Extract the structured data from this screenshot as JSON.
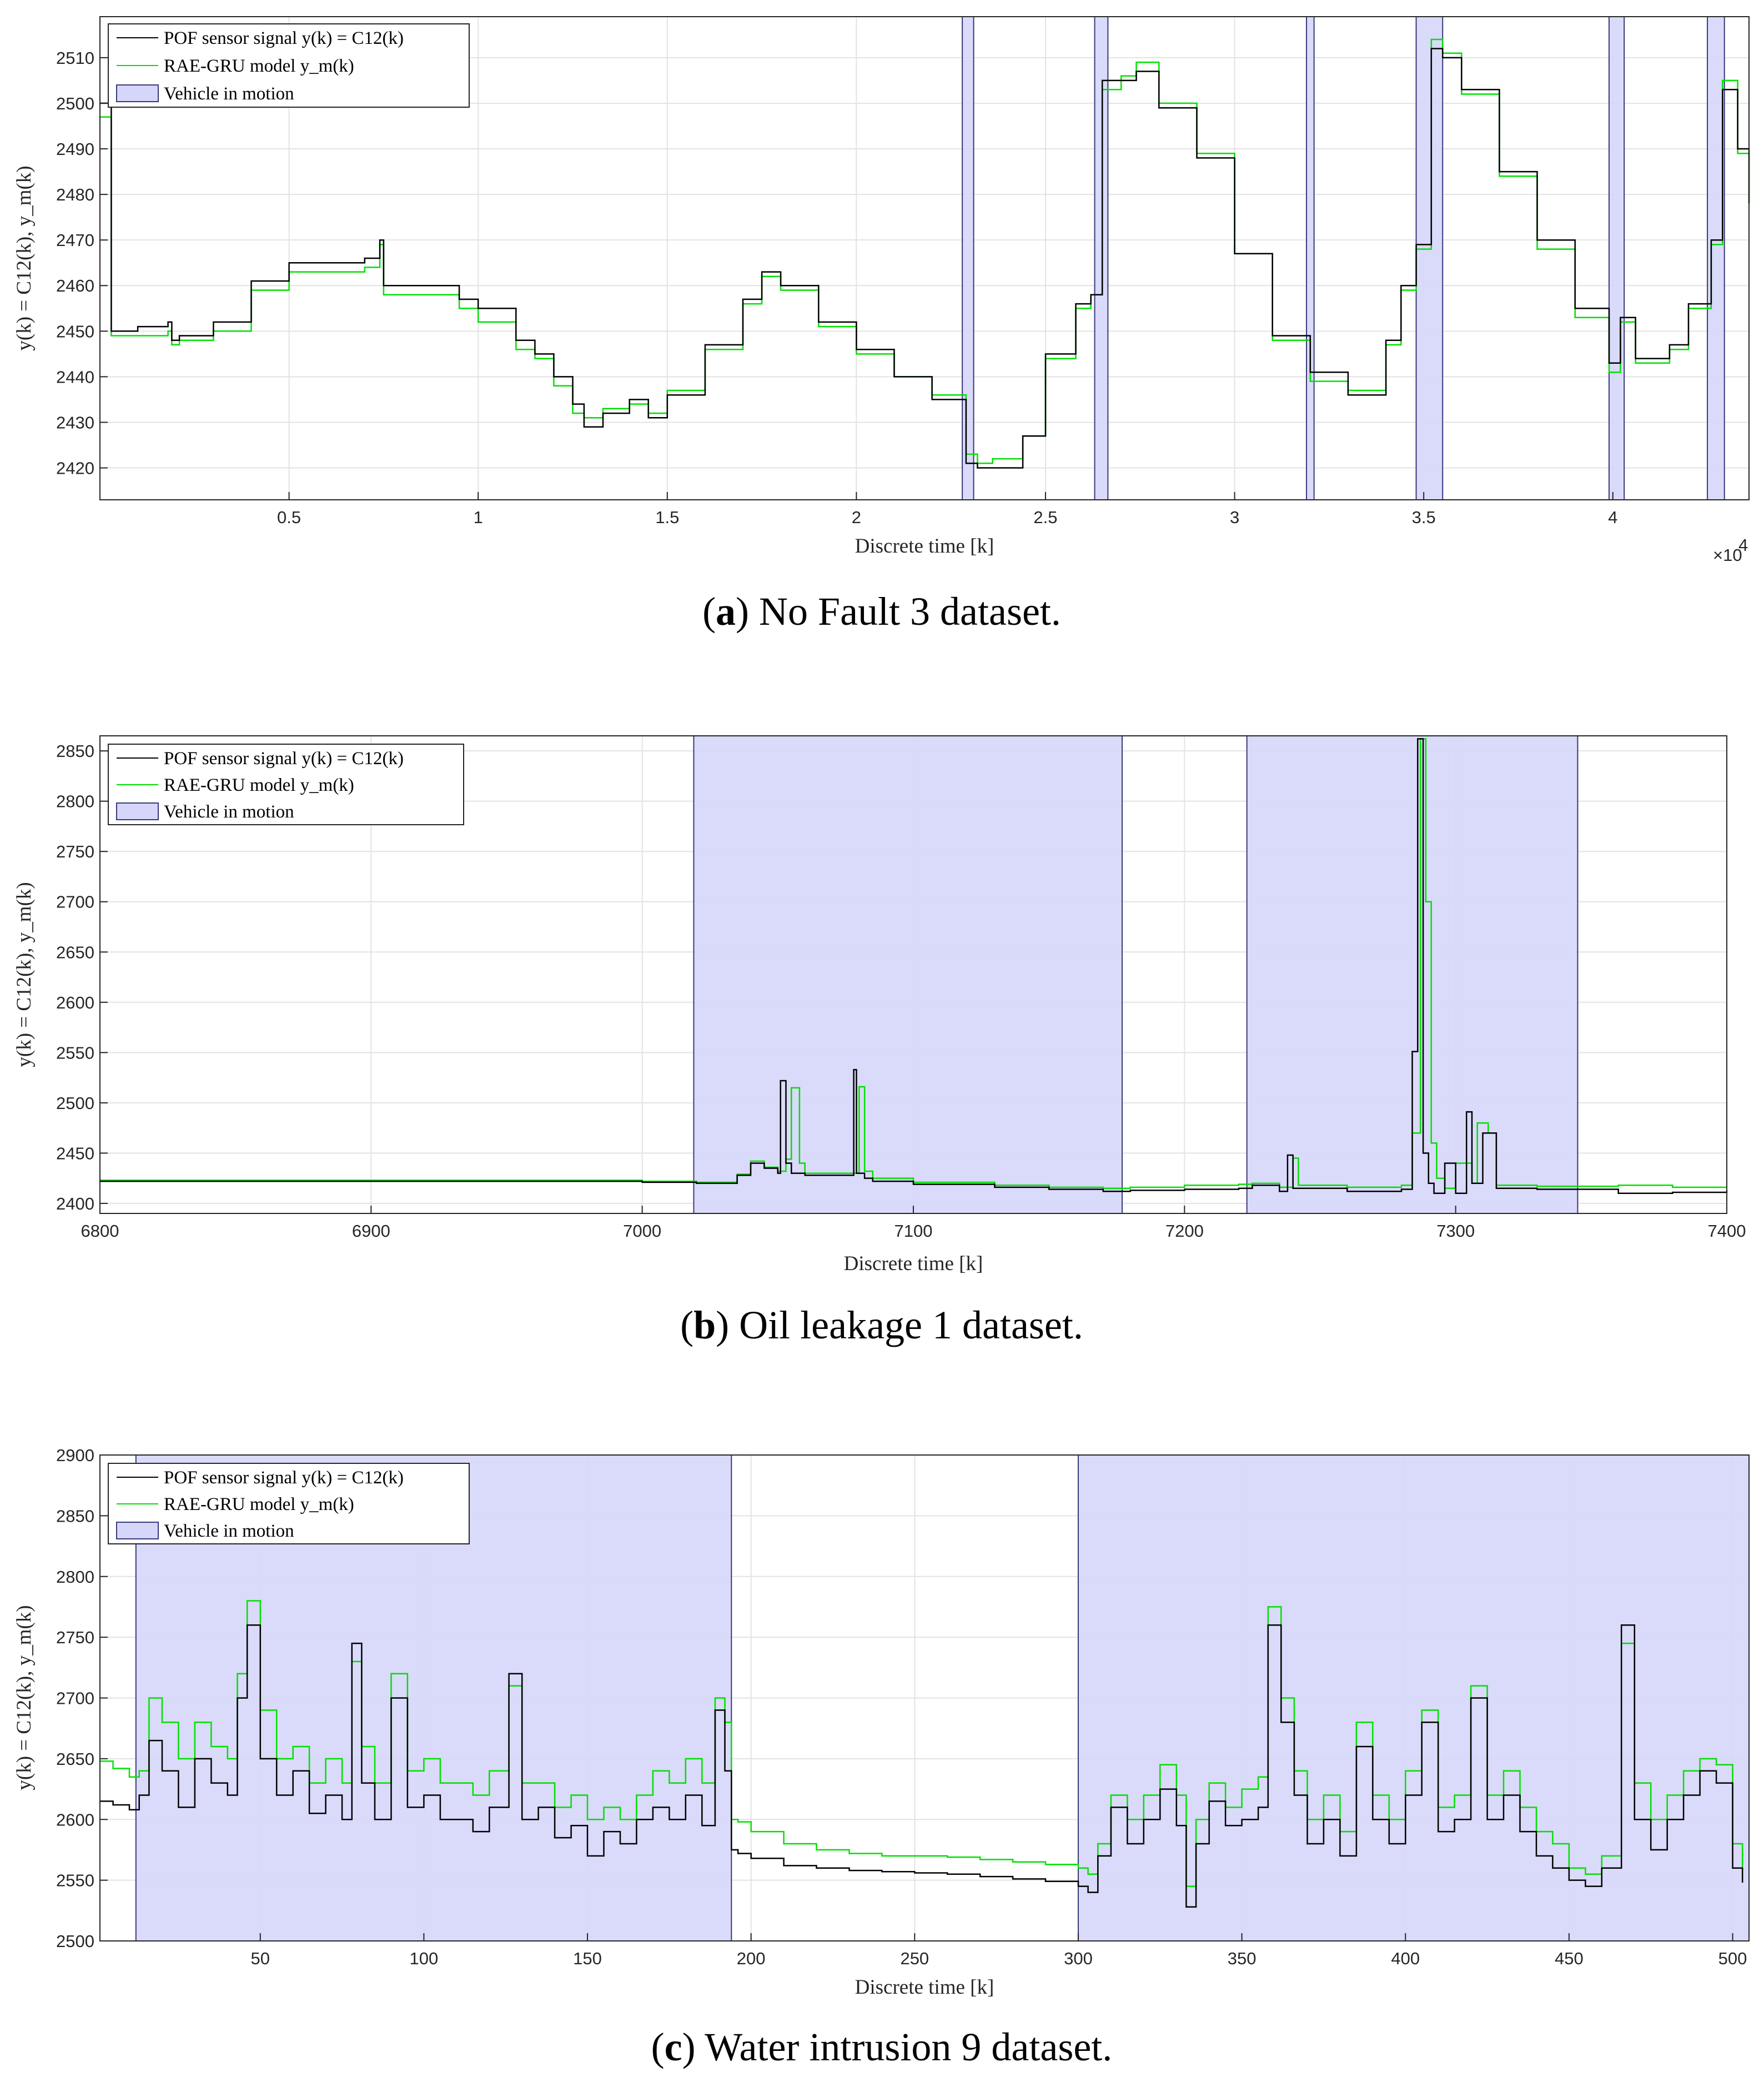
{
  "figures": [
    {
      "caption_letter": "a",
      "caption_text": " No Fault 3 dataset.",
      "xlabel": "Discrete time [k]",
      "ylabel": "y(k) = C12(k),  y_m(k)",
      "x_exponent_label": "×10",
      "x_exponent_power": "4"
    },
    {
      "caption_letter": "b",
      "caption_text": " Oil leakage 1 dataset.",
      "xlabel": "Discrete time [k]",
      "ylabel": "y(k) = C12(k),  y_m(k)"
    },
    {
      "caption_letter": "c",
      "caption_text": " Water intrusion 9 dataset.",
      "xlabel": "Discrete time [k]",
      "ylabel": "y(k) = C12(k),  y_m(k)"
    }
  ],
  "legend": {
    "sensor": "POF sensor signal y(k) = C12(k)",
    "model": "RAE-GRU model y_m(k)",
    "motion": "Vehicle in motion"
  },
  "colors": {
    "sensor": "#000000",
    "model": "#00e000",
    "motion_fill": "#d6d6fa",
    "motion_edge": "#3a3a7a",
    "grid": "#e3e3e3",
    "axis": "#262626"
  },
  "chart_data": [
    {
      "type": "line",
      "xlim": [
        0,
        43600
      ],
      "ylim": [
        2413,
        2519
      ],
      "xticks": [
        5000,
        10000,
        15000,
        20000,
        25000,
        30000,
        35000,
        40000
      ],
      "xticklabels": [
        "0.5",
        "1",
        "1.5",
        "2",
        "2.5",
        "3",
        "3.5",
        "4"
      ],
      "yticks": [
        2420,
        2430,
        2440,
        2450,
        2460,
        2470,
        2480,
        2490,
        2500,
        2510
      ],
      "grid": true,
      "legend_position": "top-left",
      "motion_intervals": [
        [
          22800,
          23100
        ],
        [
          26300,
          26650
        ],
        [
          31900,
          32100
        ],
        [
          34800,
          35500
        ],
        [
          39900,
          40300
        ],
        [
          42500,
          42950
        ]
      ],
      "series": [
        {
          "name": "POF sensor signal y(k) = C12(k)",
          "x": [
            0,
            300,
            1000,
            1800,
            1900,
            2100,
            3000,
            4000,
            5000,
            6000,
            7000,
            7400,
            7500,
            8000,
            9000,
            9500,
            10000,
            11000,
            11500,
            12000,
            12500,
            12800,
            13300,
            14000,
            14500,
            15000,
            16000,
            17000,
            17500,
            18000,
            19000,
            20000,
            21000,
            22000,
            22900,
            23200,
            23600,
            24400,
            25000,
            25800,
            26200,
            26500,
            27000,
            27400,
            28000,
            29000,
            30000,
            31000,
            32000,
            33000,
            34000,
            34400,
            34800,
            35200,
            35500,
            36000,
            37000,
            38000,
            39000,
            39900,
            40200,
            40600,
            41500,
            42000,
            42600,
            42900,
            43300,
            43600
          ],
          "y": [
            2500,
            2450,
            2451,
            2452,
            2448,
            2449,
            2452,
            2461,
            2465,
            2465,
            2466,
            2470,
            2460,
            2460,
            2460,
            2457,
            2455,
            2448,
            2445,
            2440,
            2434,
            2429,
            2432,
            2435,
            2431,
            2436,
            2447,
            2457,
            2463,
            2460,
            2452,
            2446,
            2440,
            2435,
            2421,
            2420,
            2420,
            2427,
            2445,
            2456,
            2458,
            2505,
            2505,
            2507,
            2499,
            2488,
            2467,
            2449,
            2441,
            2436,
            2448,
            2460,
            2469,
            2512,
            2510,
            2503,
            2485,
            2470,
            2455,
            2443,
            2453,
            2444,
            2447,
            2456,
            2470,
            2503,
            2490,
            2478
          ]
        },
        {
          "name": "RAE-GRU model y_m(k)",
          "x": [
            0,
            300,
            1000,
            1800,
            1900,
            2100,
            3000,
            4000,
            5000,
            6000,
            7000,
            7400,
            7500,
            8000,
            9000,
            9500,
            10000,
            11000,
            11500,
            12000,
            12500,
            12800,
            13300,
            14000,
            14500,
            15000,
            16000,
            17000,
            17500,
            18000,
            19000,
            20000,
            21000,
            22000,
            22900,
            23200,
            23600,
            24400,
            25000,
            25800,
            26200,
            26500,
            27000,
            27400,
            28000,
            29000,
            30000,
            31000,
            32000,
            33000,
            34000,
            34400,
            34800,
            35200,
            35500,
            36000,
            37000,
            38000,
            39000,
            39900,
            40200,
            40600,
            41500,
            42000,
            42600,
            42900,
            43300,
            43600
          ],
          "y": [
            2497,
            2449,
            2449,
            2450,
            2447,
            2448,
            2450,
            2459,
            2463,
            2463,
            2464,
            2469,
            2458,
            2458,
            2458,
            2455,
            2452,
            2446,
            2444,
            2438,
            2432,
            2431,
            2433,
            2434,
            2432,
            2437,
            2446,
            2456,
            2462,
            2459,
            2451,
            2445,
            2440,
            2436,
            2423,
            2421,
            2422,
            2427,
            2444,
            2455,
            2458,
            2503,
            2506,
            2509,
            2500,
            2489,
            2467,
            2448,
            2439,
            2437,
            2447,
            2459,
            2468,
            2514,
            2511,
            2502,
            2484,
            2468,
            2453,
            2441,
            2452,
            2443,
            2446,
            2455,
            2469,
            2505,
            2489,
            2478
          ]
        }
      ]
    },
    {
      "type": "line",
      "xlim": [
        6800,
        7400
      ],
      "ylim": [
        2390,
        2865
      ],
      "xticks": [
        6800,
        6900,
        7000,
        7100,
        7200,
        7300,
        7400
      ],
      "xticklabels": [
        "6800",
        "6900",
        "7000",
        "7100",
        "7200",
        "7300",
        "7400"
      ],
      "yticks": [
        2400,
        2450,
        2500,
        2550,
        2600,
        2650,
        2700,
        2750,
        2800,
        2850
      ],
      "grid": true,
      "legend_position": "top-left",
      "motion_intervals": [
        [
          7019,
          7177
        ],
        [
          7223,
          7345
        ]
      ],
      "series": [
        {
          "name": "POF sensor signal y(k) = C12(k)",
          "x": [
            6800,
            6900,
            7000,
            7020,
            7035,
            7040,
            7045,
            7050,
            7051,
            7053,
            7055,
            7060,
            7075,
            7078,
            7079,
            7082,
            7085,
            7100,
            7130,
            7150,
            7170,
            7180,
            7200,
            7220,
            7225,
            7235,
            7238,
            7240,
            7260,
            7280,
            7284,
            7286,
            7288,
            7290,
            7292,
            7296,
            7300,
            7304,
            7306,
            7310,
            7315,
            7330,
            7345,
            7360,
            7380,
            7400
          ],
          "y": [
            2422,
            2422,
            2421,
            2420,
            2428,
            2440,
            2435,
            2430,
            2522,
            2440,
            2430,
            2428,
            2428,
            2533,
            2430,
            2425,
            2422,
            2419,
            2416,
            2414,
            2412,
            2413,
            2414,
            2415,
            2418,
            2412,
            2448,
            2415,
            2412,
            2414,
            2551,
            2862,
            2450,
            2420,
            2410,
            2440,
            2410,
            2491,
            2420,
            2470,
            2415,
            2414,
            2414,
            2410,
            2411,
            2413
          ]
        },
        {
          "name": "RAE-GRU model y_m(k)",
          "x": [
            6800,
            6900,
            7000,
            7020,
            7035,
            7040,
            7045,
            7050,
            7053,
            7055,
            7058,
            7060,
            7078,
            7080,
            7082,
            7085,
            7100,
            7130,
            7150,
            7170,
            7180,
            7200,
            7220,
            7225,
            7235,
            7240,
            7242,
            7260,
            7280,
            7284,
            7287,
            7289,
            7291,
            7293,
            7296,
            7300,
            7306,
            7308,
            7312,
            7315,
            7330,
            7345,
            7360,
            7380,
            7400
          ],
          "y": [
            2423,
            2423,
            2422,
            2421,
            2429,
            2442,
            2436,
            2432,
            2444,
            2515,
            2440,
            2430,
            2430,
            2516,
            2432,
            2425,
            2421,
            2418,
            2416,
            2415,
            2416,
            2418,
            2419,
            2420,
            2416,
            2445,
            2418,
            2416,
            2418,
            2470,
            2862,
            2700,
            2460,
            2425,
            2415,
            2440,
            2420,
            2480,
            2470,
            2418,
            2417,
            2417,
            2418,
            2416,
            2416
          ]
        }
      ]
    },
    {
      "type": "line",
      "xlim": [
        1,
        505
      ],
      "ylim": [
        2500,
        2900
      ],
      "xticks": [
        50,
        100,
        150,
        200,
        250,
        300,
        350,
        400,
        450,
        500
      ],
      "xticklabels": [
        "50",
        "100",
        "150",
        "200",
        "250",
        "300",
        "350",
        "400",
        "450",
        "500"
      ],
      "yticks": [
        2500,
        2550,
        2600,
        2650,
        2700,
        2750,
        2800,
        2850,
        2900
      ],
      "grid": true,
      "legend_position": "top-left",
      "motion_intervals": [
        [
          12,
          194
        ],
        [
          300,
          505
        ]
      ],
      "series": [
        {
          "name": "POF sensor signal y(k) = C12(k)",
          "x": [
            1,
            5,
            10,
            13,
            16,
            20,
            25,
            30,
            35,
            40,
            43,
            46,
            50,
            55,
            60,
            65,
            70,
            75,
            78,
            81,
            85,
            90,
            95,
            100,
            105,
            110,
            115,
            120,
            126,
            130,
            135,
            140,
            145,
            150,
            155,
            160,
            165,
            170,
            175,
            180,
            185,
            189,
            192,
            194,
            196,
            200,
            210,
            220,
            230,
            240,
            250,
            260,
            270,
            280,
            290,
            300,
            303,
            306,
            310,
            315,
            320,
            325,
            330,
            333,
            336,
            340,
            345,
            350,
            355,
            358,
            362,
            366,
            370,
            375,
            380,
            385,
            390,
            395,
            400,
            405,
            410,
            415,
            420,
            425,
            430,
            435,
            440,
            445,
            450,
            455,
            460,
            466,
            470,
            475,
            480,
            485,
            490,
            495,
            500,
            503
          ],
          "y": [
            2615,
            2612,
            2608,
            2620,
            2665,
            2640,
            2610,
            2650,
            2630,
            2620,
            2700,
            2760,
            2650,
            2620,
            2640,
            2605,
            2620,
            2600,
            2745,
            2630,
            2600,
            2700,
            2610,
            2620,
            2600,
            2600,
            2590,
            2610,
            2720,
            2600,
            2610,
            2585,
            2595,
            2570,
            2590,
            2580,
            2600,
            2610,
            2600,
            2620,
            2595,
            2690,
            2640,
            2575,
            2572,
            2568,
            2562,
            2560,
            2558,
            2557,
            2556,
            2555,
            2553,
            2551,
            2549,
            2545,
            2540,
            2570,
            2610,
            2580,
            2600,
            2625,
            2595,
            2528,
            2580,
            2615,
            2595,
            2600,
            2610,
            2760,
            2680,
            2620,
            2580,
            2600,
            2570,
            2660,
            2600,
            2580,
            2620,
            2680,
            2590,
            2600,
            2700,
            2600,
            2620,
            2590,
            2570,
            2560,
            2550,
            2545,
            2560,
            2760,
            2600,
            2575,
            2600,
            2620,
            2640,
            2630,
            2560,
            2548
          ]
        },
        {
          "name": "RAE-GRU model y_m(k)",
          "x": [
            1,
            5,
            10,
            13,
            16,
            20,
            25,
            30,
            35,
            40,
            43,
            46,
            50,
            55,
            60,
            65,
            70,
            75,
            78,
            81,
            85,
            90,
            95,
            100,
            105,
            110,
            115,
            120,
            126,
            130,
            135,
            140,
            145,
            150,
            155,
            160,
            165,
            170,
            175,
            180,
            185,
            189,
            192,
            194,
            196,
            200,
            210,
            220,
            230,
            240,
            250,
            260,
            270,
            280,
            290,
            300,
            303,
            306,
            310,
            315,
            320,
            325,
            330,
            333,
            336,
            340,
            345,
            350,
            355,
            358,
            362,
            366,
            370,
            375,
            380,
            385,
            390,
            395,
            400,
            405,
            410,
            415,
            420,
            425,
            430,
            435,
            440,
            445,
            450,
            455,
            460,
            466,
            470,
            475,
            480,
            485,
            490,
            495,
            500,
            503
          ],
          "y": [
            2648,
            2642,
            2635,
            2640,
            2700,
            2680,
            2650,
            2680,
            2660,
            2650,
            2720,
            2780,
            2690,
            2650,
            2660,
            2630,
            2650,
            2630,
            2730,
            2660,
            2630,
            2720,
            2640,
            2650,
            2630,
            2630,
            2620,
            2640,
            2710,
            2630,
            2630,
            2610,
            2620,
            2600,
            2610,
            2600,
            2620,
            2640,
            2630,
            2650,
            2630,
            2700,
            2680,
            2600,
            2598,
            2590,
            2580,
            2575,
            2572,
            2570,
            2570,
            2569,
            2567,
            2565,
            2563,
            2560,
            2555,
            2580,
            2620,
            2600,
            2620,
            2645,
            2620,
            2545,
            2600,
            2630,
            2610,
            2625,
            2635,
            2775,
            2700,
            2640,
            2600,
            2620,
            2590,
            2680,
            2620,
            2600,
            2640,
            2690,
            2610,
            2620,
            2710,
            2620,
            2640,
            2610,
            2590,
            2580,
            2560,
            2555,
            2570,
            2745,
            2630,
            2600,
            2620,
            2640,
            2650,
            2645,
            2580,
            2558
          ]
        }
      ]
    }
  ]
}
